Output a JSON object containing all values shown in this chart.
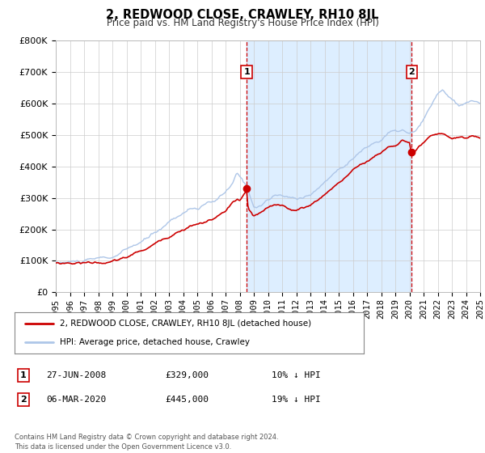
{
  "title": "2, REDWOOD CLOSE, CRAWLEY, RH10 8JL",
  "subtitle": "Price paid vs. HM Land Registry's House Price Index (HPI)",
  "legend_line1": "2, REDWOOD CLOSE, CRAWLEY, RH10 8JL (detached house)",
  "legend_line2": "HPI: Average price, detached house, Crawley",
  "annotation1_label": "1",
  "annotation1_date": "27-JUN-2008",
  "annotation1_price": "£329,000",
  "annotation1_hpi": "10% ↓ HPI",
  "annotation2_label": "2",
  "annotation2_date": "06-MAR-2020",
  "annotation2_price": "£445,000",
  "annotation2_hpi": "19% ↓ HPI",
  "footer": "Contains HM Land Registry data © Crown copyright and database right 2024.\nThis data is licensed under the Open Government Licence v3.0.",
  "sale1_date_num": 2008.49,
  "sale1_price": 329000,
  "sale2_date_num": 2020.17,
  "sale2_price": 445000,
  "hpi_color": "#aec6e8",
  "price_color": "#cc0000",
  "sale_dot_color": "#cc0000",
  "shaded_region_color": "#ddeeff",
  "vline_color": "#cc0000",
  "background_color": "#ffffff",
  "grid_color": "#cccccc",
  "ylim": [
    0,
    800000
  ],
  "yticks": [
    0,
    100000,
    200000,
    300000,
    400000,
    500000,
    600000,
    700000,
    800000
  ],
  "xmin": 1995,
  "xmax": 2025,
  "hpi_anchors": {
    "1995.0": 95000,
    "1997.0": 100000,
    "1999.0": 108000,
    "2000.0": 130000,
    "2001.5": 165000,
    "2002.5": 200000,
    "2003.5": 240000,
    "2004.5": 268000,
    "2005.0": 272000,
    "2005.5": 278000,
    "2006.0": 285000,
    "2006.5": 295000,
    "2007.0": 315000,
    "2007.5": 340000,
    "2007.8": 370000,
    "2008.0": 360000,
    "2008.5": 330000,
    "2009.0": 270000,
    "2009.5": 275000,
    "2010.0": 295000,
    "2010.5": 305000,
    "2011.0": 305000,
    "2011.5": 298000,
    "2012.0": 295000,
    "2012.5": 305000,
    "2013.0": 315000,
    "2013.5": 330000,
    "2014.0": 355000,
    "2014.5": 375000,
    "2015.0": 400000,
    "2015.5": 420000,
    "2016.0": 440000,
    "2016.5": 460000,
    "2017.0": 475000,
    "2017.5": 490000,
    "2018.0": 500000,
    "2018.5": 525000,
    "2019.0": 525000,
    "2019.5": 530000,
    "2020.0": 515000,
    "2020.5": 525000,
    "2021.0": 555000,
    "2021.5": 595000,
    "2022.0": 635000,
    "2022.3": 650000,
    "2022.5": 645000,
    "2023.0": 620000,
    "2023.5": 595000,
    "2024.0": 600000,
    "2024.5": 615000,
    "2025.0": 600000
  },
  "red_anchors": {
    "1995.0": 93000,
    "1997.0": 98000,
    "1999.0": 103000,
    "2000.0": 115000,
    "2001.5": 145000,
    "2002.5": 170000,
    "2003.5": 200000,
    "2004.5": 225000,
    "2005.0": 230000,
    "2005.5": 235000,
    "2006.0": 245000,
    "2006.5": 255000,
    "2007.0": 270000,
    "2007.5": 295000,
    "2007.8": 305000,
    "2008.0": 300000,
    "2008.49": 329000,
    "2008.6": 270000,
    "2009.0": 248000,
    "2009.5": 258000,
    "2010.0": 270000,
    "2010.5": 278000,
    "2011.0": 278000,
    "2011.5": 270000,
    "2012.0": 265000,
    "2012.5": 272000,
    "2013.0": 282000,
    "2013.5": 298000,
    "2014.0": 318000,
    "2014.5": 338000,
    "2015.0": 358000,
    "2015.5": 378000,
    "2016.0": 395000,
    "2016.5": 415000,
    "2017.0": 428000,
    "2017.5": 443000,
    "2018.0": 455000,
    "2018.5": 475000,
    "2019.0": 480000,
    "2019.5": 498000,
    "2020.0": 490000,
    "2020.17": 445000,
    "2020.5": 460000,
    "2021.0": 482000,
    "2021.5": 498000,
    "2022.0": 500000,
    "2022.5": 498000,
    "2023.0": 488000,
    "2023.5": 492000,
    "2024.0": 488000,
    "2024.5": 495000,
    "2025.0": 490000
  }
}
